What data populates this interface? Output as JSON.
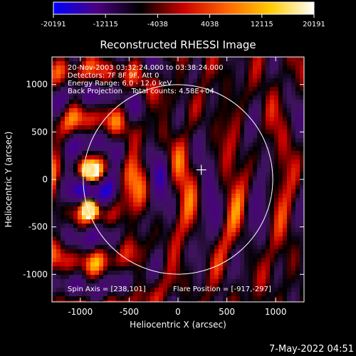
{
  "colorbar": {
    "ticks": [
      -20191,
      -12115,
      -4038,
      4038,
      12115,
      20191
    ],
    "tick_labels": [
      "-20191",
      "-12115",
      "-4038",
      "4038",
      "12115",
      "20191"
    ],
    "gradient": [
      "#0000ff",
      "#4b0082",
      "#000000",
      "#cc0000",
      "#ff6600",
      "#ffcc00",
      "#ffffff"
    ]
  },
  "plot": {
    "title": "Reconstructed RHESSI Image",
    "annotations": [
      "20-Nov-2003 03:32:24.000 to 03:38:24.000",
      "Detectors: 7F 8F 9F, Att 0",
      "Energy Range: 6.0 - 12.0 keV",
      "Back Projection    Total counts: 4.58E+04"
    ],
    "spin_axis": "Spin Axis = [238,101]",
    "flare_position": "Flare Position = [-917,-297]",
    "timestamp": "7-May-2022 04:51"
  },
  "chart_data": {
    "type": "heatmap",
    "title": "Reconstructed RHESSI Image",
    "xlabel": "Heliocentric X (arcsec)",
    "ylabel": "Heliocentric Y (arcsec)",
    "xlim": [
      -1290,
      1290
    ],
    "ylim": [
      -1290,
      1290
    ],
    "xticks": [
      -1000,
      -500,
      0,
      500,
      1000
    ],
    "yticks": [
      -1000,
      -500,
      0,
      500,
      1000
    ],
    "xtick_labels": [
      "-1000",
      "-500",
      "0",
      "500",
      "1000"
    ],
    "ytick_labels": [
      "-1000",
      "-500",
      "0",
      "500",
      "1000"
    ],
    "value_range": [
      -20191,
      20191
    ],
    "solar_disk": {
      "center": [
        0,
        0
      ],
      "radius_arcsec": 970
    },
    "spin_axis_marker": [
      238,
      101
    ],
    "bright_sources": [
      {
        "x": -917,
        "y": 100,
        "level": "max"
      },
      {
        "x": -917,
        "y": -297,
        "level": "max"
      }
    ]
  }
}
